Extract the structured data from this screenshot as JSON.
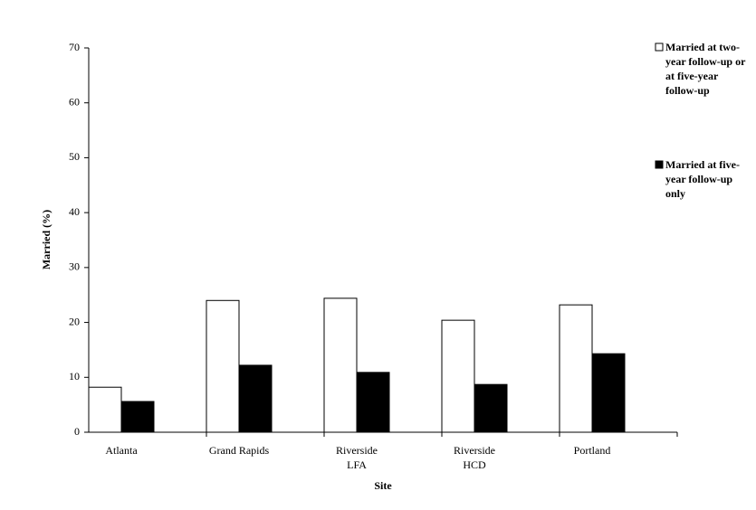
{
  "chart_data": {
    "type": "bar",
    "x_label": "Site",
    "y_label": "Married (%)",
    "categories": [
      "Atlanta",
      "Grand Rapids",
      "Riverside LFA",
      "Riverside HCD",
      "Portland"
    ],
    "series": [
      {
        "name": "Married at two-year follow-up or at five-year follow-up",
        "color": "#ffffff",
        "values": [
          8.2,
          24.0,
          24.4,
          20.4,
          23.2
        ]
      },
      {
        "name": "Married at five-year follow-up only",
        "color": "#000000",
        "values": [
          5.6,
          12.2,
          10.9,
          8.7,
          14.3
        ]
      }
    ],
    "ylim": [
      0,
      70
    ],
    "yticks": [
      0,
      10,
      20,
      30,
      40,
      50,
      60,
      70
    ],
    "grid": false,
    "legend": "right"
  }
}
